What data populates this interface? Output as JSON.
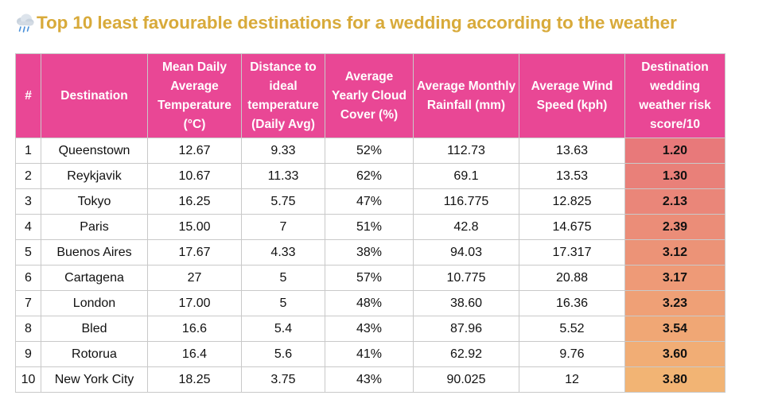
{
  "title": "Top 10 least favourable destinations for a wedding according to the weather",
  "title_icon": "cloud-with-rain-icon",
  "colors": {
    "title": "#d8aa3a",
    "header_bg": "#e94795",
    "header_text": "#ffffff",
    "score_low": "#e8797a",
    "score_high": "#f2b474"
  },
  "table": {
    "headers": [
      "#",
      "Destination",
      "Mean Daily Average Temperature (°C)",
      "Distance to ideal temperature (Daily Avg)",
      "Average Yearly Cloud Cover (%)",
      "Average Monthly Rainfall (mm)",
      "Average Wind Speed (kph)",
      "Destination wedding weather risk score/10"
    ],
    "rows": [
      {
        "rank": "1",
        "destination": "Queenstown",
        "temp": "12.67",
        "distance": "9.33",
        "cloud": "52%",
        "rainfall": "112.73",
        "wind": "13.63",
        "score": "1.20"
      },
      {
        "rank": "2",
        "destination": "Reykjavik",
        "temp": "10.67",
        "distance": "11.33",
        "cloud": "62%",
        "rainfall": "69.1",
        "wind": "13.53",
        "score": "1.30"
      },
      {
        "rank": "3",
        "destination": "Tokyo",
        "temp": "16.25",
        "distance": "5.75",
        "cloud": "47%",
        "rainfall": "116.775",
        "wind": "12.825",
        "score": "2.13"
      },
      {
        "rank": "4",
        "destination": "Paris",
        "temp": "15.00",
        "distance": "7",
        "cloud": "51%",
        "rainfall": "42.8",
        "wind": "14.675",
        "score": "2.39"
      },
      {
        "rank": "5",
        "destination": "Buenos Aires",
        "temp": "17.67",
        "distance": "4.33",
        "cloud": "38%",
        "rainfall": "94.03",
        "wind": "17.317",
        "score": "3.12"
      },
      {
        "rank": "6",
        "destination": "Cartagena",
        "temp": "27",
        "distance": "5",
        "cloud": "57%",
        "rainfall": "10.775",
        "wind": "20.88",
        "score": "3.17"
      },
      {
        "rank": "7",
        "destination": "London",
        "temp": "17.00",
        "distance": "5",
        "cloud": "48%",
        "rainfall": "38.60",
        "wind": "16.36",
        "score": "3.23"
      },
      {
        "rank": "8",
        "destination": "Bled",
        "temp": "16.6",
        "distance": "5.4",
        "cloud": "43%",
        "rainfall": "87.96",
        "wind": "5.52",
        "score": "3.54"
      },
      {
        "rank": "9",
        "destination": "Rotorua",
        "temp": "16.4",
        "distance": "5.6",
        "cloud": "41%",
        "rainfall": "62.92",
        "wind": "9.76",
        "score": "3.60"
      },
      {
        "rank": "10",
        "destination": "New York City",
        "temp": "18.25",
        "distance": "3.75",
        "cloud": "43%",
        "rainfall": "90.025",
        "wind": "12",
        "score": "3.80"
      }
    ]
  }
}
